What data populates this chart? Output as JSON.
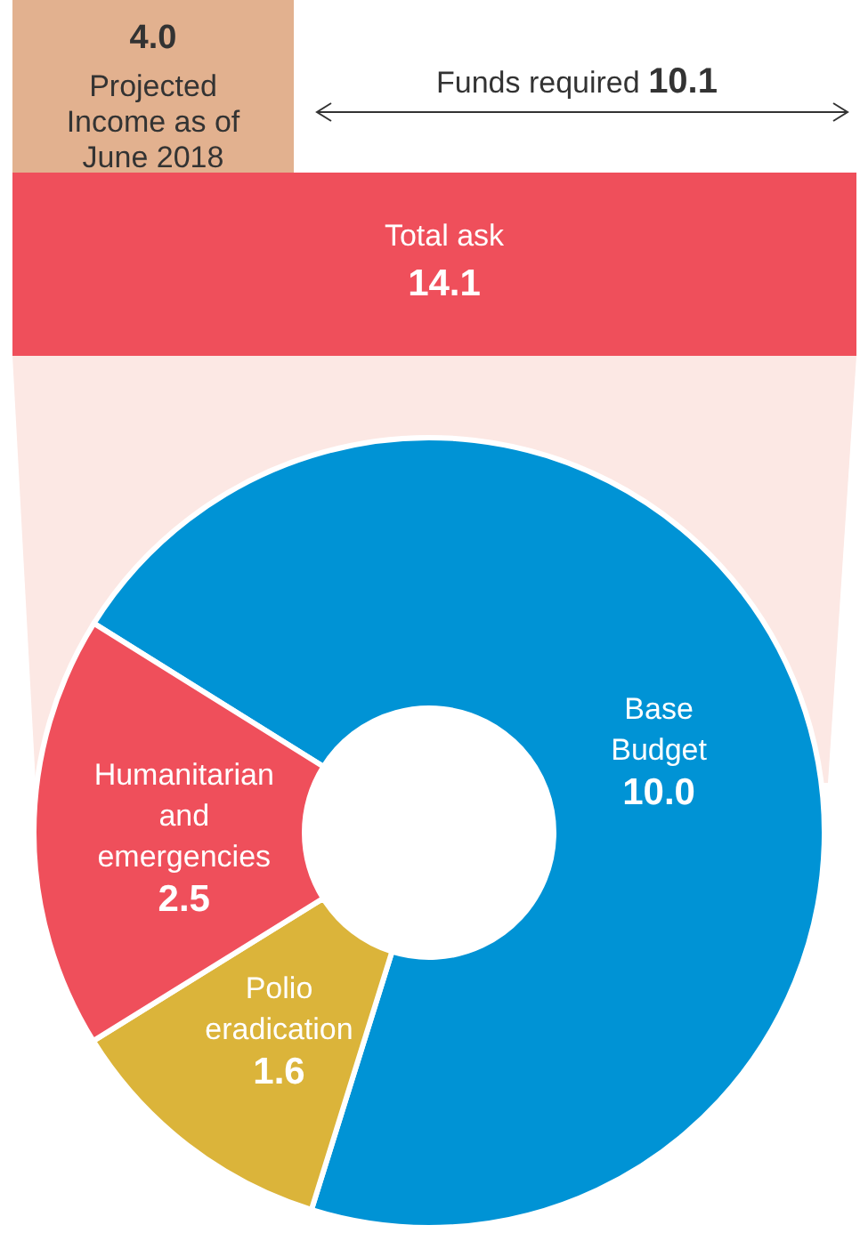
{
  "chart_data": {
    "type": "donut",
    "categories": [
      "Base Budget",
      "Polio eradication",
      "Humanitarian and emergencies"
    ],
    "values": [
      10.0,
      1.6,
      2.5
    ],
    "colors": [
      "#0093d5",
      "#dbb43a",
      "#ef4f5b"
    ],
    "value_labels": [
      "10.0",
      "1.6",
      "2.5"
    ],
    "annotations": [
      "4.0",
      "Projected Income as of June 2018",
      "Funds required",
      "10.1",
      "Total ask",
      "14.1"
    ]
  }
}
